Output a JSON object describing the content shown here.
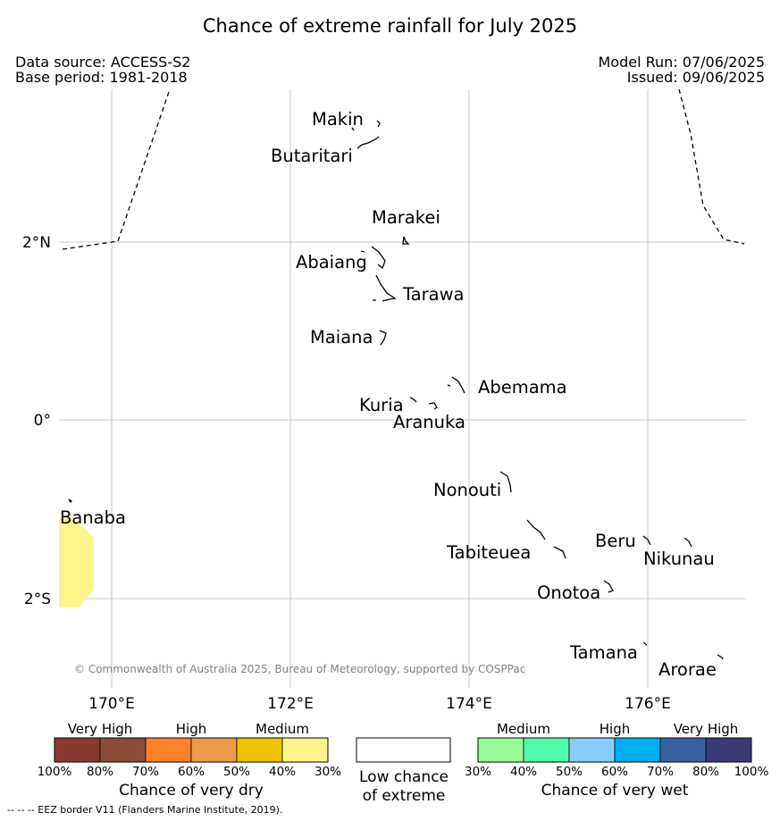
{
  "header": {
    "title": "Chance of extreme rainfall for July 2025",
    "data_source": "Data source: ACCESS-S2",
    "base_period": "Base period: 1981-2018",
    "model_run": "Model Run: 07/06/2025",
    "issued": "Issued: 09/06/2025"
  },
  "map": {
    "lat_labels": [
      "2°N",
      "0°",
      "2°S"
    ],
    "lon_labels": [
      "170°E",
      "172°E",
      "174°E",
      "176°E"
    ],
    "place_labels": [
      "Makin",
      "Butaritari",
      "Marakei",
      "Abaiang",
      "Tarawa",
      "Maiana",
      "Abemama",
      "Kuria",
      "Aranuka",
      "Nonouti",
      "Banaba",
      "Tabiteuea",
      "Beru",
      "Nikunau",
      "Onotoa",
      "Tamana",
      "Arorae"
    ],
    "copyright": "© Commonwealth of Australia 2025, Bureau of Meteorology, supported by COSPPac",
    "shading": {
      "category": "Medium (30%-40%) chance of very dry",
      "color": "#fdf58c",
      "location": "near Banaba"
    }
  },
  "legend": {
    "dry": {
      "headers": [
        "Very High",
        "High",
        "Medium"
      ],
      "colors": [
        "#8c3a31",
        "#8d4b3a",
        "#fe8229",
        "#eb9b4b",
        "#eec300",
        "#fdf58c"
      ],
      "ticks": [
        "100%",
        "80%",
        "70%",
        "60%",
        "50%",
        "40%",
        "30%"
      ],
      "title": "Chance of very dry"
    },
    "low": {
      "color": "#ffffff",
      "title_line1": "Low chance",
      "title_line2": "of extreme"
    },
    "wet": {
      "headers": [
        "Medium",
        "High",
        "Very High"
      ],
      "colors": [
        "#96fb96",
        "#52fba8",
        "#89cbfb",
        "#00aef0",
        "#3762a0",
        "#3c3977"
      ],
      "ticks": [
        "30%",
        "40%",
        "50%",
        "60%",
        "70%",
        "80%",
        "100%"
      ],
      "title": "Chance of very wet"
    }
  },
  "footnote": "--  --  -- EEZ border V11 (Flanders Marine Institute, 2019)."
}
